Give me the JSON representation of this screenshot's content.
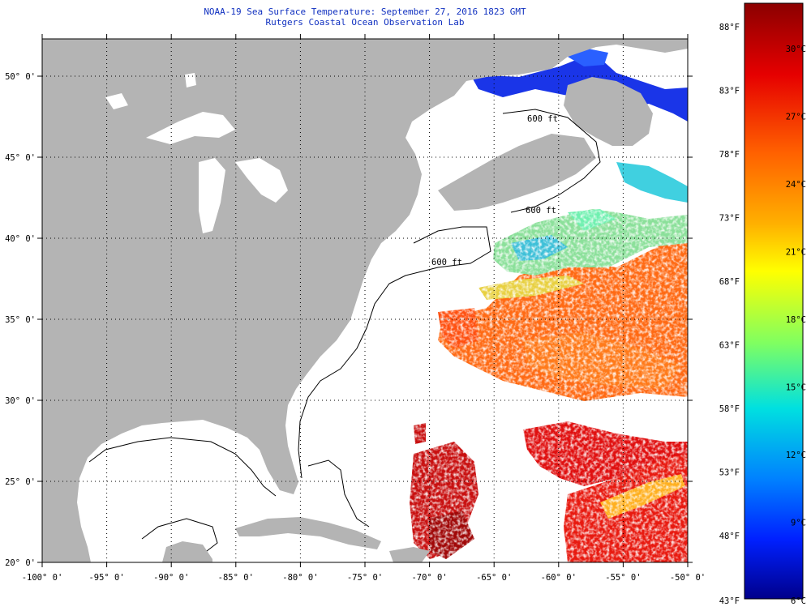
{
  "header": {
    "title_line1": "NOAA-19 Sea Surface Temperature:  September 27, 2016 1823 GMT",
    "title_line2": "Rutgers Coastal Ocean Observation Lab"
  },
  "map": {
    "lon_range": [
      -100,
      -50
    ],
    "lat_range": [
      20,
      52.3
    ],
    "lon_ticks": [
      "-100° 0'",
      "-95° 0'",
      "-90° 0'",
      "-85° 0'",
      "-80° 0'",
      "-75° 0'",
      "-70° 0'",
      "-65° 0'",
      "-60° 0'",
      "-55° 0'",
      "-50° 0'"
    ],
    "lat_ticks": [
      "20° 0'",
      "25° 0'",
      "30° 0'",
      "35° 0'",
      "40° 0'",
      "45° 0'",
      "50° 0'"
    ],
    "land_color": "#b4b4b4",
    "cloud_color": "#ffffff",
    "contour_labels": [
      "600 ft"
    ]
  },
  "color_scale": {
    "fahrenheit_labels": [
      "88°F",
      "83°F",
      "78°F",
      "73°F",
      "68°F",
      "63°F",
      "58°F",
      "53°F",
      "48°F",
      "43°F"
    ],
    "celsius_labels": [
      "30°C",
      "27°C",
      "24°C",
      "21°C",
      "18°C",
      "15°C",
      "12°C",
      "9°C",
      "6°C"
    ],
    "colors": [
      "#8b0000",
      "#e60000",
      "#ff6000",
      "#ffb000",
      "#ffff00",
      "#80ff60",
      "#00e0e0",
      "#0080ff",
      "#0020ff",
      "#00008b"
    ]
  }
}
